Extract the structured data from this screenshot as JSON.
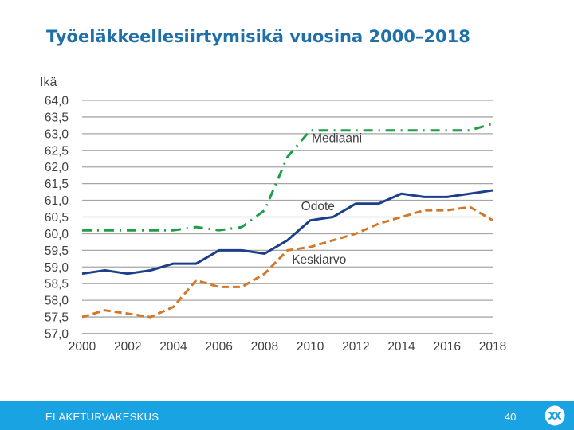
{
  "page": {
    "title": "Työeläkkeellesiirtymisikä vuosina 2000–2018",
    "footer_org": "ELÄKETURVAKESKUS",
    "page_number": "40",
    "logo_icon": "eläketurvakeskus-logo-icon"
  },
  "chart_data": {
    "type": "line",
    "title": "Työeläkkeellesiirtymisikä vuosina 2000–2018",
    "xlabel": "",
    "ylabel": "Ikä",
    "xlim": [
      2000,
      2018
    ],
    "ylim": [
      57.0,
      64.0
    ],
    "grid": true,
    "x_ticks": [
      2000,
      2002,
      2004,
      2006,
      2008,
      2010,
      2012,
      2014,
      2016,
      2018
    ],
    "x_tick_labels": [
      "2000",
      "2002",
      "2004",
      "2006",
      "2008",
      "2010",
      "2012",
      "2014",
      "2016",
      "2018"
    ],
    "y_ticks": [
      57.0,
      57.5,
      58.0,
      58.5,
      59.0,
      59.5,
      60.0,
      60.5,
      61.0,
      61.5,
      62.0,
      62.5,
      63.0,
      63.5,
      64.0
    ],
    "y_tick_labels": [
      "57,0",
      "57,5",
      "58,0",
      "58,5",
      "59,0",
      "59,5",
      "60,0",
      "60,5",
      "61,0",
      "61,5",
      "62,0",
      "62,5",
      "63,0",
      "63,5",
      "64,0"
    ],
    "x": [
      2000,
      2001,
      2002,
      2003,
      2004,
      2005,
      2006,
      2007,
      2008,
      2009,
      2010,
      2011,
      2012,
      2013,
      2014,
      2015,
      2016,
      2017,
      2018
    ],
    "series": [
      {
        "name": "Mediaani",
        "color": "#1f9e48",
        "style": "dashdot",
        "values": [
          60.1,
          60.1,
          60.1,
          60.1,
          60.1,
          60.2,
          60.1,
          60.2,
          60.7,
          62.3,
          63.1,
          63.1,
          63.1,
          63.1,
          63.1,
          63.1,
          63.1,
          63.1,
          63.3
        ]
      },
      {
        "name": "Odote",
        "color": "#1c3f8a",
        "style": "solid",
        "values": [
          58.8,
          58.9,
          58.8,
          58.9,
          59.1,
          59.1,
          59.5,
          59.5,
          59.4,
          59.8,
          60.4,
          60.5,
          60.9,
          60.9,
          61.2,
          61.1,
          61.1,
          61.2,
          61.3
        ]
      },
      {
        "name": "Keskiarvo",
        "color": "#d2782a",
        "style": "dashed",
        "values": [
          57.5,
          57.7,
          57.6,
          57.5,
          57.8,
          58.6,
          58.4,
          58.4,
          58.8,
          59.5,
          59.6,
          59.8,
          60.0,
          60.3,
          60.5,
          60.7,
          60.7,
          60.8,
          60.4
        ]
      }
    ]
  }
}
